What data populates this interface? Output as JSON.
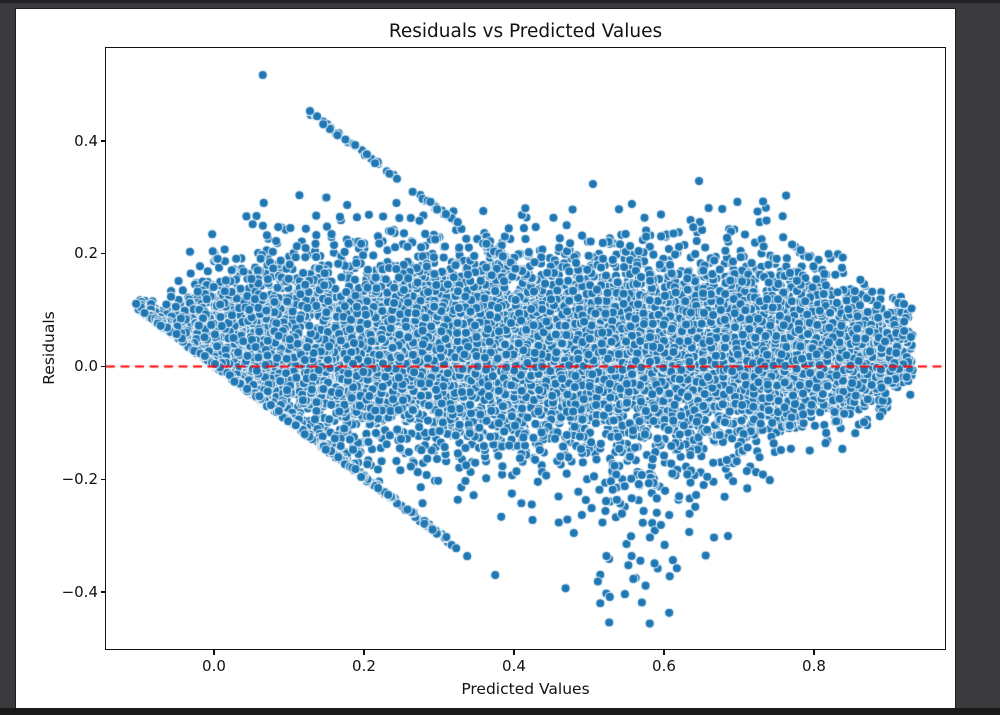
{
  "window": {
    "background": "#3b3b3d",
    "top_edge_color": "#232325",
    "bottom_edge_color": "#1a1a1a",
    "figure_background": "#ffffff"
  },
  "chart_data": {
    "type": "scatter",
    "title": "Residuals vs Predicted Values",
    "xlabel": "Predicted Values",
    "ylabel": "Residuals",
    "legend": null,
    "grid": false,
    "axis_color": "#111111",
    "xlim": [
      -0.144,
      0.9747
    ],
    "ylim": [
      -0.5011,
      0.565
    ],
    "x_ticks": [
      0.0,
      0.2,
      0.4,
      0.6,
      0.8
    ],
    "x_tick_labels": [
      "0.0",
      "0.2",
      "0.4",
      "0.6",
      "0.8"
    ],
    "y_ticks": [
      -0.4,
      -0.2,
      0.0,
      0.2,
      0.4
    ],
    "y_tick_labels": [
      "−0.4",
      "−0.2",
      "0.0",
      "0.2",
      "0.4"
    ],
    "marker": {
      "fill": "#1f77b4",
      "edge": "rgba(255,255,255,0.9)",
      "edge_width": 1.1,
      "radius_px": 4.6
    },
    "zero_line": {
      "y": 0,
      "color": "#ff0000",
      "style": "dashed",
      "dash": [
        9,
        5.5
      ],
      "width": 1.8
    },
    "n_points_estimate": 11000,
    "x_data_range": [
      -0.105,
      0.932
    ],
    "y_data_range": [
      -0.456,
      0.517
    ],
    "generator": {
      "comment": "Dense residual cloud bounded below-left by the line y = -x (pile-up edge), tapering to a tip near (0.92, 0.03); sparse diagonal streak along y = 0.578 - x; downward tail cluster near x = 0.56.",
      "seed": 42,
      "n_cloud": 10500,
      "x_min": -0.105,
      "x_max": 0.932,
      "fade_left": 0.055,
      "fade_right": 0.05,
      "fade_pow": 0.65,
      "mean_y": 0.025,
      "sd_y": 0.088,
      "right_shrink_start": 0.72,
      "right_shrink_min": 0.38,
      "left_shrink_start": 0.05,
      "left_shrink_min": 0.26,
      "clip_jitter": 0.011,
      "streaks": [
        {
          "name": "upper-diagonal-streak",
          "n": 85,
          "x0": 0.125,
          "x1": 0.43,
          "intercept": 0.578,
          "slope": -1,
          "jitter": 0.0035,
          "one_sided": false
        },
        {
          "name": "zero-class-edge",
          "n": 300,
          "x0": -0.105,
          "x1": 0.37,
          "intercept": 0,
          "slope": -1,
          "jitter": 0.008,
          "one_sided": true,
          "fade_start": 0.24
        }
      ],
      "bottom_tail": {
        "n": 80,
        "x_center": 0.565,
        "x_sd": 0.05,
        "y_top": -0.19,
        "y_bottom": -0.42,
        "bias": 1.6
      },
      "high_sprinkle": {
        "n": 26,
        "x0": 0.05,
        "x1": 0.78,
        "y0": 0.215,
        "y1": 0.305
      }
    },
    "outliers": [
      [
        0.065,
        0.517
      ],
      [
        0.527,
        -0.454
      ],
      [
        0.581,
        -0.456
      ],
      [
        0.607,
        -0.437
      ],
      [
        0.375,
        -0.37
      ]
    ]
  }
}
